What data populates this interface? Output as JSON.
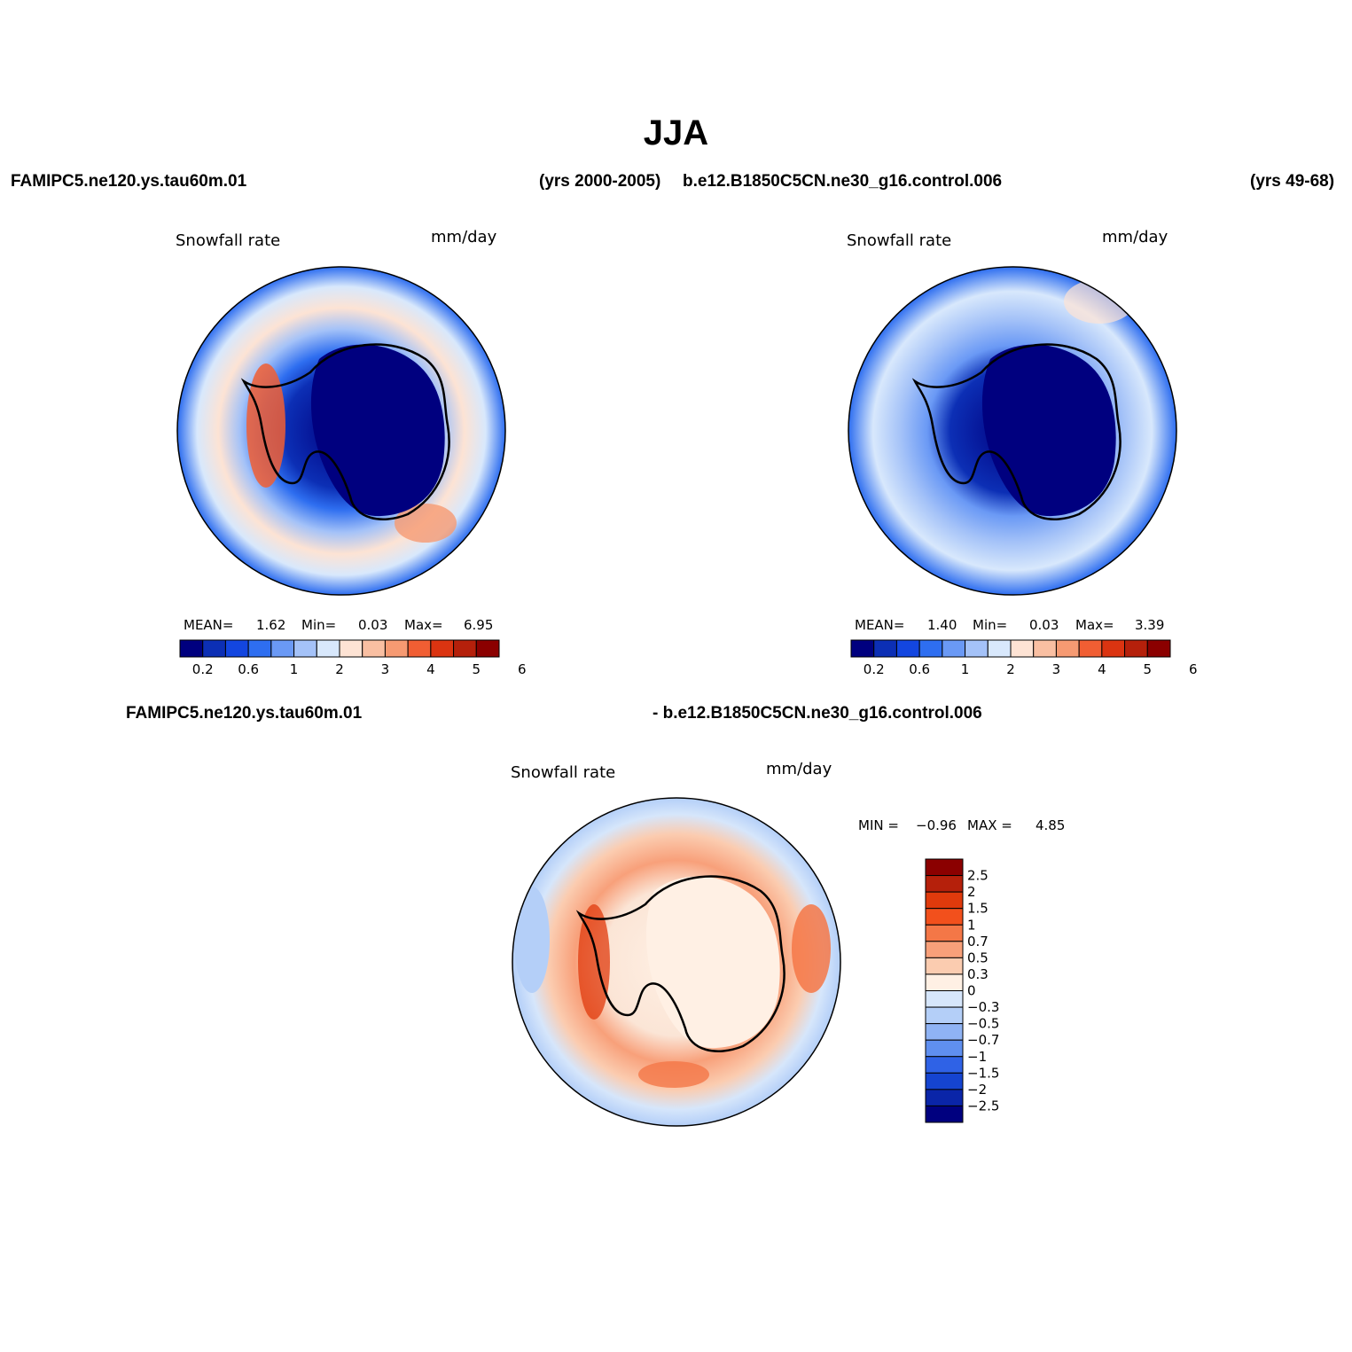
{
  "figure": {
    "title": "JJA",
    "top_left_case": "FAMIPC5.ne120.ys.tau60m.01",
    "top_left_years": "(yrs 2000-2005)",
    "top_right_case": "b.e12.B1850C5CN.ne30_g16.control.006",
    "top_right_years": "(yrs 49-68)",
    "diff_case_a": "FAMIPC5.ne120.ys.tau60m.01",
    "diff_case_b": "- b.e12.B1850C5CN.ne30_g16.control.006"
  },
  "panels": [
    {
      "variable": "Snowfall rate",
      "units": "mm/day",
      "stats": {
        "mean_label": "MEAN=",
        "mean": "1.62",
        "min_label": "Min=",
        "min": "0.03",
        "max_label": "Max=",
        "max": "6.95"
      }
    },
    {
      "variable": "Snowfall rate",
      "units": "mm/day",
      "stats": {
        "mean_label": "MEAN=",
        "mean": "1.40",
        "min_label": "Min=",
        "min": "0.03",
        "max_label": "Max=",
        "max": "3.39"
      }
    },
    {
      "variable": "Snowfall rate",
      "units": "mm/day",
      "stats": {
        "min_label": "MIN =",
        "min": "−0.96",
        "max_label": "MAX =",
        "max": "4.85"
      }
    }
  ],
  "chart_data": [
    {
      "type": "map",
      "projection": "south-polar stereographic",
      "title": "Snowfall rate",
      "units": "mm/day",
      "colorbar": {
        "orientation": "horizontal",
        "colors": [
          "#00007f",
          "#0c2fb5",
          "#1346e0",
          "#2e6ef0",
          "#6a99f5",
          "#a4c2f8",
          "#d8e8fc",
          "#fde3d4",
          "#f9bfa2",
          "#f69a72",
          "#f15e33",
          "#db3411",
          "#b5200b",
          "#8b0000"
        ],
        "tick_labels": [
          "0.2",
          "0.6",
          "1",
          "2",
          "3",
          "4",
          "5",
          "6"
        ]
      }
    },
    {
      "type": "map",
      "projection": "south-polar stereographic",
      "title": "Snowfall rate",
      "units": "mm/day",
      "colorbar": {
        "orientation": "horizontal",
        "colors": [
          "#00007f",
          "#0c2fb5",
          "#1346e0",
          "#2e6ef0",
          "#6a99f5",
          "#a4c2f8",
          "#d8e8fc",
          "#fde3d4",
          "#f9bfa2",
          "#f69a72",
          "#f15e33",
          "#db3411",
          "#b5200b",
          "#8b0000"
        ],
        "tick_labels": [
          "0.2",
          "0.6",
          "1",
          "2",
          "3",
          "4",
          "5",
          "6"
        ]
      }
    },
    {
      "type": "map",
      "projection": "south-polar stereographic",
      "title": "Snowfall rate",
      "units": "mm/day",
      "colorbar": {
        "orientation": "vertical",
        "colors_top_to_bottom": [
          "#8b0000",
          "#b5200b",
          "#e03a0c",
          "#f2501c",
          "#f47747",
          "#f8a07a",
          "#fbccb0",
          "#fff0e4",
          "#d6e6fb",
          "#b4cff8",
          "#8fb3f4",
          "#5f8ff0",
          "#2f62e6",
          "#1544d0",
          "#0a25a8",
          "#00007f"
        ],
        "tick_labels_top_to_bottom": [
          "2.5",
          "2",
          "1.5",
          "1",
          "0.7",
          "0.5",
          "0.3",
          "0",
          "−0.3",
          "−0.5",
          "−0.7",
          "−1",
          "−1.5",
          "−2",
          "−2.5"
        ]
      }
    }
  ]
}
